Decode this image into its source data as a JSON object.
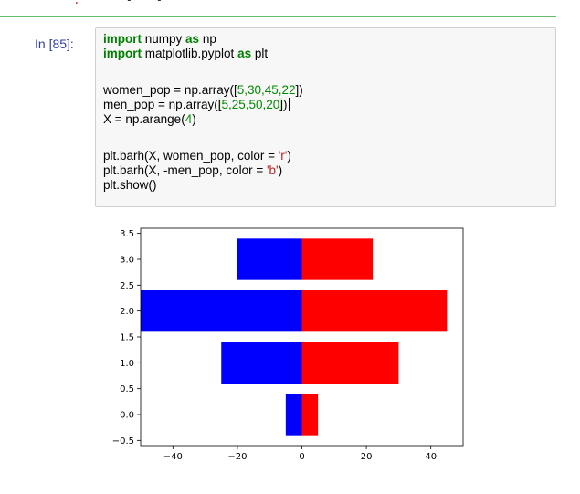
{
  "notebook": {
    "prompt": "In [85]:",
    "code": {
      "line1": {
        "kw1": "import",
        "mod": " numpy ",
        "kw2": "as",
        "alias": " np"
      },
      "line2": {
        "kw1": "import",
        "mod": " matplotlib.pyplot ",
        "kw2": "as",
        "alias": " plt"
      },
      "line3": {
        "pre": "women_pop = np.array([",
        "nums": "5,30,45,22",
        "post": "])"
      },
      "line4": {
        "pre": "men_pop = np.array(",
        "br_open": "[",
        "nums": "5,25,50,20",
        "br_close": "]",
        "post": ")"
      },
      "line5": {
        "pre": "X = np.arange(",
        "num": "4",
        "post": ")"
      },
      "line6": {
        "pre": "plt.barh(X, women_pop, color = ",
        "str": "'r'",
        "post": ")"
      },
      "line7": {
        "pre": "plt.barh(X, -men_pop, color = ",
        "str": "'b'",
        "post": ")"
      },
      "line8": {
        "text": "plt.show()"
      }
    }
  },
  "chart_data": {
    "type": "bar",
    "orientation": "horizontal",
    "categories": [
      0,
      1,
      2,
      3
    ],
    "series": [
      {
        "values": [
          5,
          30,
          45,
          22
        ],
        "color": "#ff0000"
      },
      {
        "values": [
          -5,
          -25,
          -50,
          -20
        ],
        "color": "#0000ff"
      }
    ],
    "xlim": [
      -50,
      50
    ],
    "ylim": [
      -0.6,
      3.6
    ],
    "xticks": [
      -40,
      -20,
      0,
      20,
      40
    ],
    "xtick_labels": [
      "−40",
      "−20",
      "0",
      "20",
      "40"
    ],
    "yticks": [
      -0.5,
      0,
      0.5,
      1,
      1.5,
      2,
      2.5,
      3,
      3.5
    ],
    "ytick_labels": [
      "−0.5",
      "0.0",
      "0.5",
      "1.0",
      "1.5",
      "2.0",
      "2.5",
      "3.0",
      "3.5"
    ],
    "bar_height": 0.8,
    "grid": false,
    "title": "",
    "xlabel": "",
    "ylabel": ""
  }
}
